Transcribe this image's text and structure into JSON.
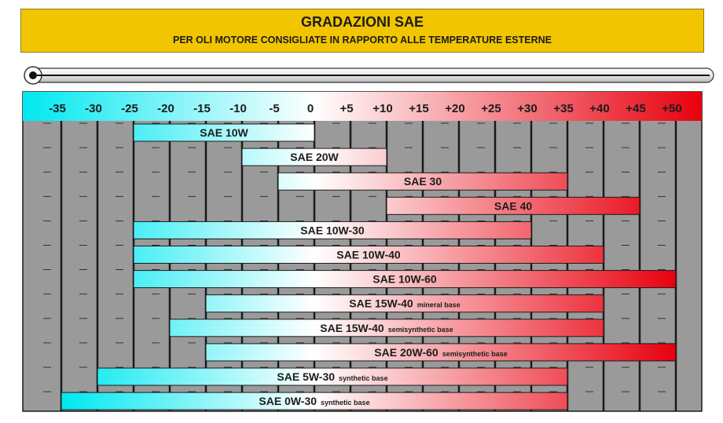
{
  "title": "GRADAZIONI SAE",
  "subtitle": "PER OLI MOTORE CONSIGLIATE IN RAPPORTO ALLE TEMPERATURE ESTERNE",
  "colors": {
    "header": "#f1c500",
    "cold": "#00e8f0",
    "hot": "#e8000e",
    "grid": "#9a9a9a",
    "gridline": "#1a1a1a"
  },
  "chart_data": {
    "type": "bar",
    "orientation": "horizontal-range",
    "xlabel": "",
    "ylabel": "",
    "xlim": [
      -40,
      55
    ],
    "ticks": [
      "-35",
      "-30",
      "-25",
      "-20",
      "-15",
      "-10",
      "-5",
      "0",
      "+5",
      "+10",
      "+15",
      "+20",
      "+25",
      "+30",
      "+35",
      "+40",
      "+45",
      "+50"
    ],
    "tick_values": [
      -35,
      -30,
      -25,
      -20,
      -15,
      -10,
      -5,
      0,
      5,
      10,
      15,
      20,
      25,
      30,
      35,
      40,
      45,
      50
    ],
    "bars": [
      {
        "label": "SAE 10W",
        "note": "",
        "min": -25,
        "max": 0
      },
      {
        "label": "SAE 20W",
        "note": "",
        "min": -10,
        "max": 10
      },
      {
        "label": "SAE 30",
        "note": "",
        "min": -5,
        "max": 35
      },
      {
        "label": "SAE 40",
        "note": "",
        "min": 10,
        "max": 45
      },
      {
        "label": "SAE 10W-30",
        "note": "",
        "min": -25,
        "max": 30
      },
      {
        "label": "SAE 10W-40",
        "note": "",
        "min": -25,
        "max": 40
      },
      {
        "label": "SAE 10W-60",
        "note": "",
        "min": -25,
        "max": 50
      },
      {
        "label": "SAE 15W-40",
        "note": "mineral base",
        "min": -15,
        "max": 40
      },
      {
        "label": "SAE 15W-40",
        "note": "semisynthetic base",
        "min": -20,
        "max": 40
      },
      {
        "label": "SAE 20W-60",
        "note": "semisynthetic base",
        "min": -15,
        "max": 50
      },
      {
        "label": "SAE 5W-30",
        "note": "synthetic base",
        "min": -30,
        "max": 35
      },
      {
        "label": "SAE 0W-30",
        "note": "synthetic base",
        "min": -35,
        "max": 35
      }
    ]
  }
}
